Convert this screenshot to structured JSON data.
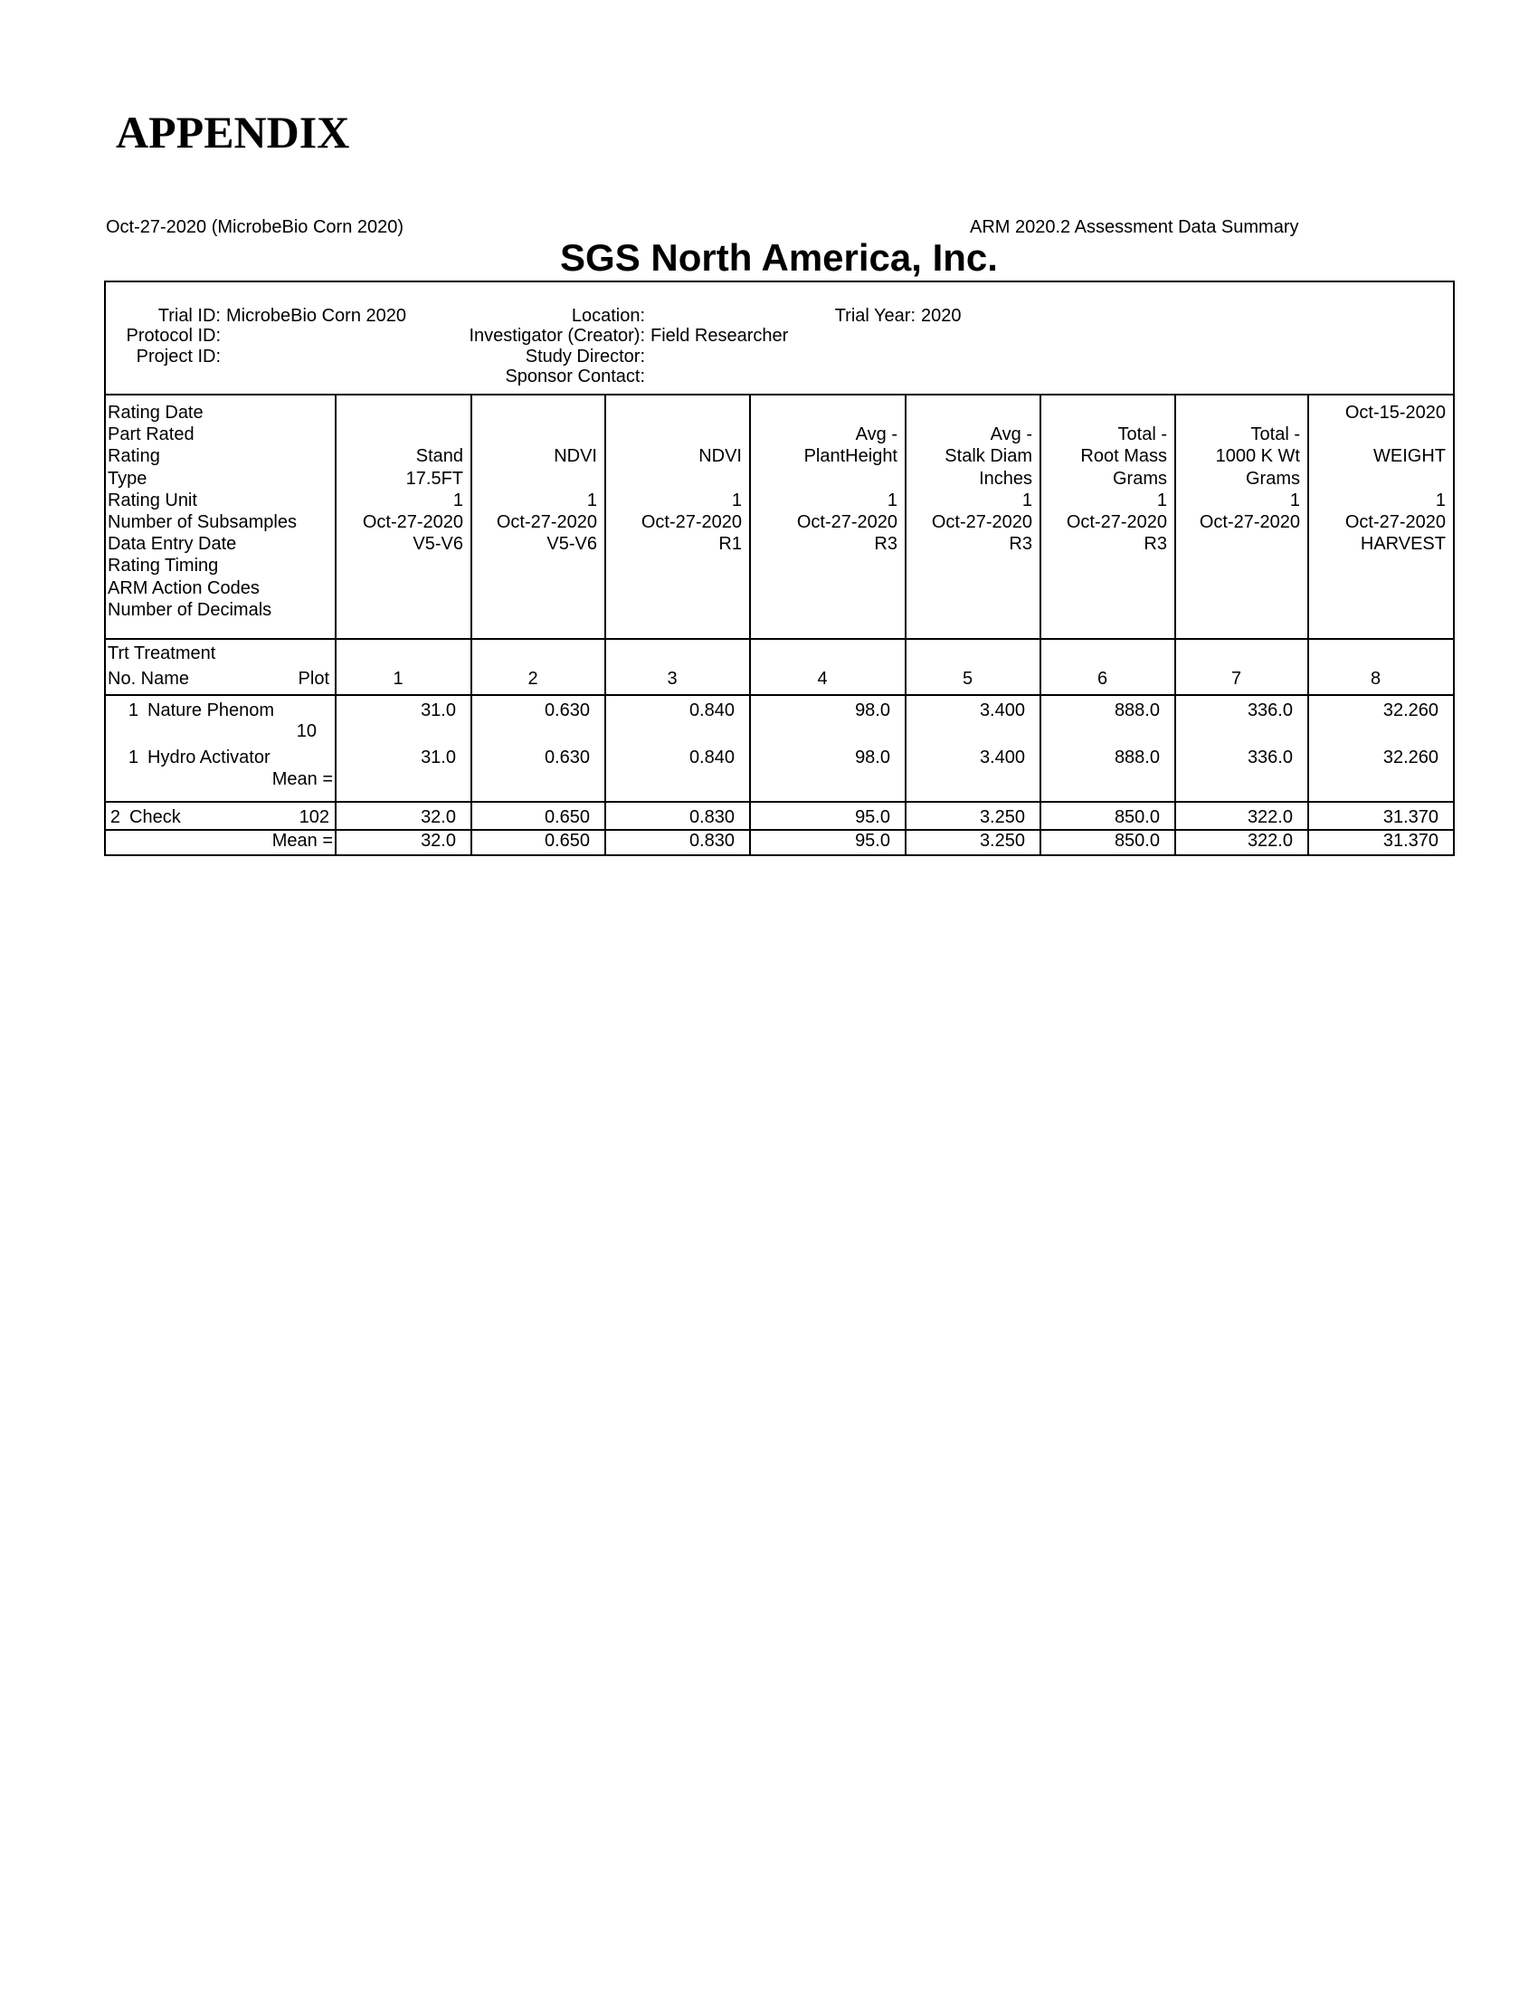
{
  "header": {
    "title": "APPENDIX",
    "date_line": "Oct-27-2020 (MicrobeBio Corn 2020)",
    "report": "ARM 2020.2 Assessment Data Summary",
    "company": "SGS North America, Inc."
  },
  "info": {
    "fields": [
      {
        "label": "Trial ID:",
        "value": "MicrobeBio Corn 2020"
      },
      {
        "label": "Protocol ID:"
      },
      {
        "label": "Project ID:"
      },
      {
        "label": "Location:"
      },
      {
        "label": "Investigator (Creator):",
        "value": "Field Researcher"
      },
      {
        "label": "Study Director:"
      },
      {
        "label": "Sponsor Contact:"
      },
      {
        "label": "Trial Year:",
        "value": "2020"
      }
    ]
  },
  "table": {
    "row_labels": [
      "Rating Date",
      "Part Rated",
      "Rating",
      "Type",
      "Rating Unit",
      "Number of Subsamples",
      "Data Entry Date",
      "Rating Timing",
      "ARM Action Codes",
      "Number of Decimals"
    ],
    "columns": [
      {
        "number": "1",
        "cells": [
          null,
          null,
          "Stand",
          "17.5FT",
          "1",
          "Oct-27-2020",
          "V5-V6",
          null,
          null,
          null
        ]
      },
      {
        "number": "2",
        "cells": [
          null,
          null,
          "NDVI",
          null,
          "1",
          "Oct-27-2020",
          "V5-V6",
          null,
          null,
          null
        ]
      },
      {
        "number": "3",
        "cells": [
          null,
          null,
          "NDVI",
          null,
          "1",
          "Oct-27-2020",
          "R1",
          null,
          null,
          null
        ]
      },
      {
        "number": "4",
        "cells": [
          null,
          "Avg -",
          "PlantHeight",
          null,
          "1",
          "Oct-27-2020",
          "R3",
          null,
          null,
          null
        ]
      },
      {
        "number": "5",
        "cells": [
          null,
          "Avg -",
          "Stalk Diam",
          "Inches",
          "1",
          "Oct-27-2020",
          "R3",
          null,
          null,
          null
        ]
      },
      {
        "number": "6",
        "cells": [
          null,
          "Total -",
          "Root Mass",
          "Grams",
          "1",
          "Oct-27-2020",
          "R3",
          null,
          null,
          null
        ]
      },
      {
        "number": "7",
        "cells": [
          null,
          "Total -",
          "1000 K Wt",
          "Grams",
          "1",
          "Oct-27-2020",
          null,
          null,
          null,
          null
        ]
      },
      {
        "number": "8",
        "cells": [
          "Oct-15-2020",
          null,
          "WEIGHT",
          null,
          "1",
          "Oct-27-2020",
          "HARVEST",
          null,
          null,
          null
        ]
      }
    ],
    "trt_header": {
      "line1": "Trt  Treatment",
      "line2": "No. Name",
      "plot": "Plot"
    },
    "rows": [
      {
        "trt": "1",
        "name": "Nature Phenom",
        "plot": "10",
        "values": [
          "31.0",
          "0.630",
          "0.840",
          "98.0",
          "3.400",
          "888.0",
          "336.0",
          "32.260"
        ]
      },
      {
        "trt": "1",
        "name": "Hydro Activator",
        "mean_label": "Mean =",
        "values": [
          "31.0",
          "0.630",
          "0.840",
          "98.0",
          "3.400",
          "888.0",
          "336.0",
          "32.260"
        ]
      },
      {
        "trt": "2",
        "name": "Check",
        "plot": "102",
        "values": [
          "32.0",
          "0.650",
          "0.830",
          "95.0",
          "3.250",
          "850.0",
          "322.0",
          "31.370"
        ]
      },
      {
        "mean_label": "Mean =",
        "values": [
          "32.0",
          "0.650",
          "0.830",
          "95.0",
          "3.250",
          "850.0",
          "322.0",
          "31.370"
        ]
      }
    ]
  }
}
